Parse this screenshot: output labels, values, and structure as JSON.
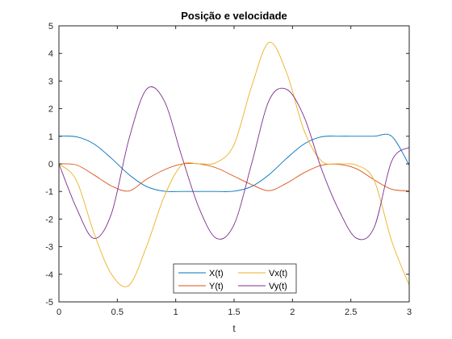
{
  "chart_data": {
    "type": "line",
    "title": "Posição e velocidade",
    "xlabel": "t",
    "ylabel": "",
    "xlim": [
      0,
      3
    ],
    "ylim": [
      -5,
      5
    ],
    "xticks": [
      0,
      0.5,
      1,
      1.5,
      2,
      2.5,
      3
    ],
    "xtick_labels": [
      "0",
      "0.5",
      "1",
      "1.5",
      "2",
      "2.5",
      "3"
    ],
    "yticks": [
      -5,
      -4,
      -3,
      -2,
      -1,
      0,
      1,
      2,
      3,
      4,
      5
    ],
    "ytick_labels": [
      "-5",
      "-4",
      "-3",
      "-2",
      "-1",
      "0",
      "1",
      "2",
      "3",
      "4",
      "5"
    ],
    "grid": false,
    "legend_position": "bottom-center",
    "x": [
      0,
      0.15,
      0.3,
      0.45,
      0.6,
      0.75,
      0.9,
      1.05,
      1.2,
      1.35,
      1.5,
      1.65,
      1.8,
      1.95,
      2.1,
      2.25,
      2.4,
      2.55,
      2.7,
      2.85,
      3
    ],
    "series": [
      {
        "name": "X(t)",
        "color": "#0072BD",
        "values": [
          1.0,
          0.98,
          0.72,
          0.2,
          -0.39,
          -0.82,
          -0.99,
          -1.0,
          -1.0,
          -1.0,
          -0.99,
          -0.82,
          -0.39,
          0.2,
          0.72,
          0.98,
          1.0,
          1.0,
          1.0,
          1.0,
          -0.05
        ]
      },
      {
        "name": "Y(t)",
        "color": "#D95319",
        "values": [
          0,
          -0.04,
          -0.4,
          -0.8,
          -0.98,
          -0.56,
          -0.22,
          -0.01,
          0.0,
          -0.15,
          -0.45,
          -0.75,
          -0.97,
          -0.7,
          -0.32,
          -0.05,
          -0.02,
          -0.18,
          -0.58,
          -0.92,
          -0.98
        ]
      },
      {
        "name": "Vx(t)",
        "color": "#EDB120",
        "values": [
          0,
          -0.6,
          -2.5,
          -4.0,
          -4.4,
          -3.0,
          -1.2,
          -0.05,
          0,
          0.05,
          0.7,
          2.8,
          4.4,
          3.3,
          1.2,
          0.1,
          0,
          -0.05,
          -0.6,
          -2.8,
          -4.4
        ]
      },
      {
        "name": "Vy(t)",
        "color": "#7E2F8E",
        "values": [
          0,
          -1.6,
          -2.7,
          -1.8,
          0.9,
          2.7,
          2.3,
          0.3,
          -1.6,
          -2.7,
          -2.2,
          0.0,
          2.3,
          2.7,
          1.7,
          -0.2,
          -1.7,
          -2.7,
          -2.3,
          0.1,
          0.6
        ]
      }
    ]
  }
}
